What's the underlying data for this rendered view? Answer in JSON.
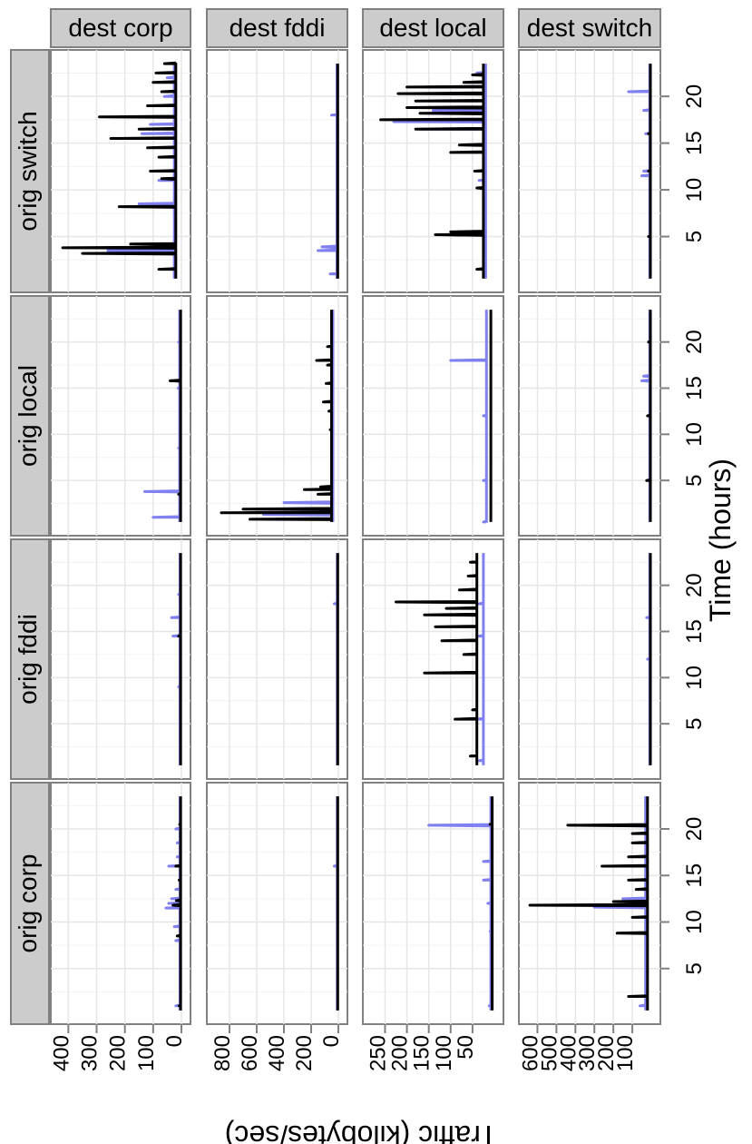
{
  "chart_data": {
    "type": "line",
    "xlabel": "Time (hours)",
    "ylabel": "Traffic (kilobytes/sec)",
    "xlim": [
      0,
      24
    ],
    "x_ticks": [
      "5",
      "10",
      "15",
      "20"
    ],
    "grid": true,
    "orig_strips": [
      "orig corp",
      "orig fddi",
      "orig local",
      "orig switch"
    ],
    "dest_strips": [
      "dest corp",
      "dest fddi",
      "dest local",
      "dest switch"
    ],
    "dest_scales": [
      {
        "max": 430,
        "ticks": [
          "400",
          "300",
          "200",
          "100",
          "0"
        ],
        "tick_values": [
          400,
          300,
          200,
          100,
          0
        ]
      },
      {
        "max": 900,
        "ticks": [
          "800",
          "600",
          "400",
          "200",
          "0"
        ],
        "tick_values": [
          800,
          600,
          400,
          200,
          0
        ]
      },
      {
        "max": 280,
        "ticks": [
          "250",
          "200",
          "150",
          "100",
          "50"
        ],
        "tick_values": [
          250,
          200,
          150,
          100,
          50
        ]
      },
      {
        "max": 650,
        "ticks": [
          "600",
          "500",
          "400",
          "300",
          "200",
          "100"
        ],
        "tick_values": [
          600,
          500,
          400,
          300,
          200,
          100
        ]
      }
    ],
    "series_colors": {
      "dark": "#000000",
      "light": "#8080f0",
      "overlap": "#191970"
    },
    "panels": [
      {
        "orig": "orig corp",
        "dest": "dest corp",
        "dark": {
          "base": 3,
          "spikes": [
            [
              1,
              8
            ],
            [
              8.5,
              15
            ],
            [
              11.8,
              30
            ],
            [
              12.3,
              18
            ],
            [
              14.5,
              8
            ],
            [
              16,
              20
            ],
            [
              20.5,
              6
            ]
          ]
        },
        "light": {
          "base": 5,
          "spikes": [
            [
              1,
              20
            ],
            [
              8,
              20
            ],
            [
              9.5,
              25
            ],
            [
              11.5,
              55
            ],
            [
              12,
              45
            ],
            [
              12.5,
              35
            ],
            [
              13.5,
              20
            ],
            [
              16,
              45
            ],
            [
              17,
              15
            ],
            [
              18.5,
              15
            ],
            [
              20,
              20
            ]
          ]
        }
      },
      {
        "orig": "orig corp",
        "dest": "dest fddi",
        "dark": {
          "base": 5,
          "spikes": []
        },
        "light": {
          "base": 8,
          "spikes": [
            [
              16,
              30
            ]
          ]
        }
      },
      {
        "orig": "orig corp",
        "dest": "dest local",
        "dark": {
          "base": 5,
          "spikes": [
            [
              20.5,
              10
            ]
          ]
        },
        "light": {
          "base": 8,
          "spikes": [
            [
              1,
              12
            ],
            [
              9,
              10
            ],
            [
              12,
              15
            ],
            [
              14.5,
              25
            ],
            [
              16.5,
              25
            ],
            [
              20.4,
              150
            ]
          ]
        }
      },
      {
        "orig": "orig corp",
        "dest": "dest switch",
        "dark": {
          "base": 20,
          "spikes": [
            [
              2,
              120
            ],
            [
              8.8,
              180
            ],
            [
              10.5,
              100
            ],
            [
              11.8,
              640
            ],
            [
              12.2,
              200
            ],
            [
              13.5,
              80
            ],
            [
              14.5,
              120
            ],
            [
              16,
              260
            ],
            [
              17,
              120
            ],
            [
              18.5,
              100
            ],
            [
              19.5,
              100
            ],
            [
              20.4,
              440
            ]
          ]
        },
        "light": {
          "base": 30,
          "spikes": [
            [
              1,
              60
            ],
            [
              11.6,
              300
            ],
            [
              12.5,
              150
            ],
            [
              16,
              200
            ],
            [
              20.4,
              250
            ]
          ]
        }
      },
      {
        "orig": "orig fddi",
        "dest": "dest corp",
        "dark": {
          "base": 3,
          "spikes": [
            [
              14.5,
              10
            ]
          ]
        },
        "light": {
          "base": 5,
          "spikes": [
            [
              9,
              10
            ],
            [
              14.5,
              30
            ],
            [
              16.5,
              35
            ],
            [
              19,
              10
            ]
          ]
        }
      },
      {
        "orig": "orig fddi",
        "dest": "dest fddi",
        "dark": {
          "base": 5,
          "spikes": []
        },
        "light": {
          "base": 8,
          "spikes": [
            [
              18,
              30
            ]
          ]
        }
      },
      {
        "orig": "orig fddi",
        "dest": "dest local",
        "dark": {
          "base": 40,
          "spikes": [
            [
              1.5,
              55
            ],
            [
              5.5,
              90
            ],
            [
              6.5,
              50
            ],
            [
              10.5,
              160
            ],
            [
              12.5,
              70
            ],
            [
              14,
              120
            ],
            [
              15.5,
              135
            ],
            [
              16.8,
              160
            ],
            [
              17.5,
              110
            ],
            [
              18.2,
              225
            ],
            [
              19.5,
              80
            ],
            [
              21,
              60
            ],
            [
              22.5,
              55
            ]
          ]
        },
        "light": {
          "base": 25,
          "spikes": [
            [
              1,
              35
            ],
            [
              5.5,
              40
            ],
            [
              14.5,
              35
            ],
            [
              18,
              35
            ]
          ]
        }
      },
      {
        "orig": "orig fddi",
        "dest": "dest switch",
        "dark": {
          "base": 5,
          "spikes": []
        },
        "light": {
          "base": 8,
          "spikes": [
            [
              12,
              20
            ],
            [
              16.5,
              25
            ]
          ]
        }
      },
      {
        "orig": "orig local",
        "dest": "dest corp",
        "dark": {
          "base": 3,
          "spikes": [
            [
              3.5,
              10
            ],
            [
              15.8,
              40
            ]
          ]
        },
        "light": {
          "base": 6,
          "spikes": [
            [
              1,
              100
            ],
            [
              3.8,
              130
            ],
            [
              8.5,
              10
            ],
            [
              15,
              12
            ],
            [
              20,
              10
            ]
          ]
        }
      },
      {
        "orig": "orig local",
        "dest": "dest fddi",
        "dark": {
          "base": 50,
          "spikes": [
            [
              0.8,
              650
            ],
            [
              1.5,
              860
            ],
            [
              1.9,
              700
            ],
            [
              3.5,
              150
            ],
            [
              4,
              250
            ],
            [
              4.3,
              130
            ],
            [
              10.5,
              60
            ],
            [
              12.5,
              70
            ],
            [
              13.5,
              110
            ],
            [
              15.5,
              90
            ],
            [
              17.5,
              80
            ],
            [
              18,
              160
            ],
            [
              19.5,
              80
            ]
          ]
        },
        "light": {
          "base": 40,
          "spikes": [
            [
              1.3,
              550
            ],
            [
              1.9,
              600
            ],
            [
              2.6,
              400
            ]
          ]
        }
      },
      {
        "orig": "orig local",
        "dest": "dest local",
        "dark": {
          "base": 8,
          "spikes": []
        },
        "light": {
          "base": 18,
          "spikes": [
            [
              0.5,
              25
            ],
            [
              5,
              25
            ],
            [
              12,
              25
            ],
            [
              18,
              100
            ]
          ]
        }
      },
      {
        "orig": "orig local",
        "dest": "dest switch",
        "dark": {
          "base": 5,
          "spikes": [
            [
              5,
              25
            ],
            [
              12,
              20
            ],
            [
              20,
              15
            ]
          ]
        },
        "light": {
          "base": 8,
          "spikes": [
            [
              15.8,
              50
            ],
            [
              16.3,
              40
            ]
          ]
        }
      },
      {
        "orig": "orig switch",
        "dest": "dest corp",
        "dark": {
          "base": 20,
          "spikes": [
            [
              1.5,
              80
            ],
            [
              3.2,
              350
            ],
            [
              3.8,
              420
            ],
            [
              4.2,
              180
            ],
            [
              8.2,
              220
            ],
            [
              11.2,
              70
            ],
            [
              12,
              110
            ],
            [
              13.5,
              80
            ],
            [
              14.5,
              120
            ],
            [
              15.5,
              250
            ],
            [
              16.5,
              150
            ],
            [
              17.8,
              290
            ],
            [
              19,
              120
            ],
            [
              20.5,
              70
            ],
            [
              21.5,
              100
            ],
            [
              22.5,
              90
            ],
            [
              23.5,
              60
            ]
          ]
        },
        "light": {
          "base": 25,
          "spikes": [
            [
              3.5,
              260
            ],
            [
              8.5,
              150
            ],
            [
              11,
              80
            ],
            [
              16,
              140
            ],
            [
              17,
              110
            ],
            [
              20,
              60
            ],
            [
              22,
              50
            ]
          ]
        }
      },
      {
        "orig": "orig switch",
        "dest": "dest fddi",
        "dark": {
          "base": 5,
          "spikes": []
        },
        "light": {
          "base": 10,
          "spikes": [
            [
              1,
              60
            ],
            [
              3.5,
              150
            ],
            [
              3.9,
              120
            ],
            [
              18,
              50
            ]
          ]
        }
      },
      {
        "orig": "orig switch",
        "dest": "dest local",
        "dark": {
          "base": 25,
          "spikes": [
            [
              1.5,
              40
            ],
            [
              5.2,
              135
            ],
            [
              5.5,
              100
            ],
            [
              10.2,
              40
            ],
            [
              12,
              45
            ],
            [
              14,
              100
            ],
            [
              14.8,
              80
            ],
            [
              16.5,
              180
            ],
            [
              17.5,
              260
            ],
            [
              18.2,
              170
            ],
            [
              18.8,
              200
            ],
            [
              19.5,
              180
            ],
            [
              20.3,
              220
            ],
            [
              21,
              200
            ],
            [
              21.5,
              70
            ],
            [
              22.3,
              50
            ]
          ]
        },
        "light": {
          "base": 20,
          "spikes": [
            [
              5.5,
              35
            ],
            [
              11,
              35
            ],
            [
              16.5,
              170
            ],
            [
              17.3,
              230
            ],
            [
              18.5,
              140
            ],
            [
              21,
              160
            ],
            [
              22.5,
              40
            ]
          ]
        }
      },
      {
        "orig": "orig switch",
        "dest": "dest switch",
        "dark": {
          "base": 5,
          "spikes": [
            [
              5,
              15
            ],
            [
              12,
              15
            ],
            [
              16,
              15
            ]
          ]
        },
        "light": {
          "base": 8,
          "spikes": [
            [
              11.5,
              50
            ],
            [
              12,
              40
            ],
            [
              16,
              30
            ],
            [
              18.5,
              40
            ],
            [
              20.5,
              120
            ]
          ]
        }
      }
    ]
  }
}
